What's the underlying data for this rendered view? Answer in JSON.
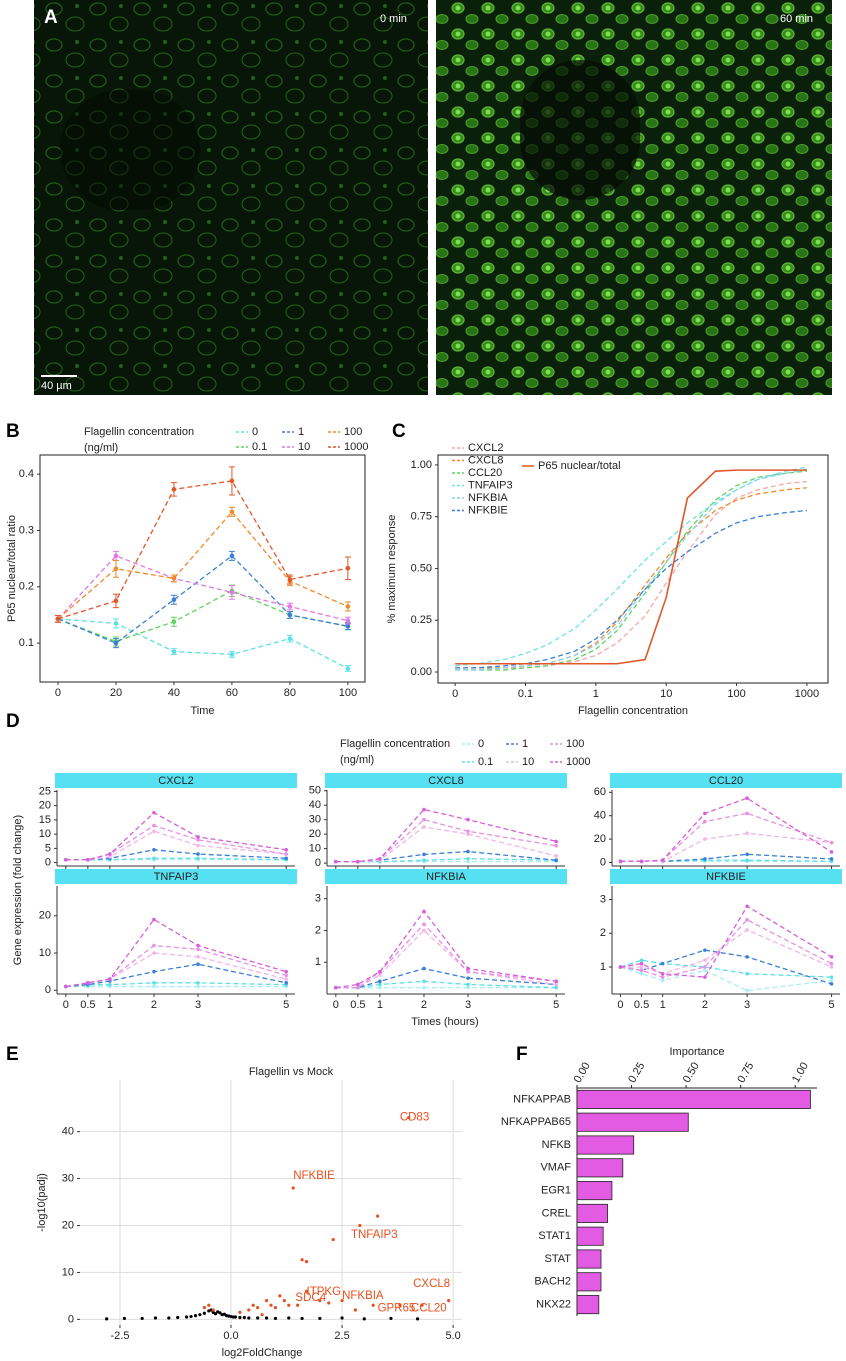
{
  "panel_labels": [
    "A",
    "B",
    "C",
    "D",
    "E",
    "F"
  ],
  "images": [
    {
      "caption": "0 min"
    },
    {
      "caption": "60 min"
    }
  ],
  "scale_bar": "40 µm",
  "chart_data": [
    {
      "type": "line",
      "xlabel": "Time",
      "ylabel": "P65 nuclear/total ratio",
      "legend_title": [
        "Flagellin concentration",
        "(ng/ml)"
      ],
      "x": [
        0,
        20,
        40,
        60,
        80,
        100
      ],
      "xlim": [
        -6.2,
        105.9
      ],
      "xticks": [
        0,
        20,
        40,
        60,
        80,
        100
      ],
      "ylim": [
        0.031,
        0.434
      ],
      "yticks": [
        0.1,
        0.2,
        0.3,
        0.4
      ],
      "line_style": "dashed",
      "series": [
        {
          "name": "0",
          "color": "#5ce0e6",
          "values": [
            0.143,
            0.135,
            0.085,
            0.08,
            0.108,
            0.055
          ],
          "errors": [
            0.006,
            0.008,
            0.005,
            0.005,
            0.006,
            0.005
          ]
        },
        {
          "name": "0.1",
          "color": "#5fd35f",
          "values": [
            0.143,
            0.103,
            0.138,
            0.193,
            0.15,
            0.13
          ],
          "errors": [
            0.006,
            0.008,
            0.008,
            0.01,
            0.006,
            0.006
          ]
        },
        {
          "name": "1",
          "color": "#3a7fd5",
          "values": [
            0.143,
            0.1,
            0.177,
            0.255,
            0.15,
            0.13
          ],
          "errors": [
            0.006,
            0.008,
            0.008,
            0.008,
            0.006,
            0.006
          ]
        },
        {
          "name": "10",
          "color": "#e377e3",
          "values": [
            0.143,
            0.255,
            0.215,
            0.19,
            0.165,
            0.14
          ],
          "errors": [
            0.006,
            0.008,
            0.006,
            0.012,
            0.006,
            0.006
          ]
        },
        {
          "name": "100",
          "color": "#f08a2a",
          "values": [
            0.143,
            0.232,
            0.215,
            0.333,
            0.21,
            0.165
          ],
          "errors": [
            0.006,
            0.015,
            0.006,
            0.008,
            0.008,
            0.008
          ]
        },
        {
          "name": "1000",
          "color": "#e2572a",
          "values": [
            0.143,
            0.175,
            0.373,
            0.388,
            0.213,
            0.233
          ],
          "errors": [
            0.006,
            0.012,
            0.012,
            0.025,
            0.008,
            0.02
          ]
        }
      ]
    },
    {
      "type": "line",
      "xlabel": "Flagellin concentration",
      "ylabel": "% maximum response",
      "xscale": "log",
      "x": [
        0.01,
        0.02,
        0.05,
        0.1,
        0.2,
        0.5,
        1,
        2,
        5,
        10,
        20,
        50,
        100,
        200,
        500,
        1000
      ],
      "xlim": [
        0.0057,
        1995
      ],
      "xticks": [
        {
          "value": 0.01,
          "label": "0"
        },
        0.1,
        1,
        10,
        100,
        1000
      ],
      "ylim": [
        -0.053,
        1.048
      ],
      "yticks": [
        {
          "value": 0,
          "label": "0.00"
        },
        0.25,
        {
          "value": 0.5,
          "label": "0.50"
        },
        0.75,
        {
          "value": 1,
          "label": "1.00"
        }
      ],
      "series": [
        {
          "name": "CXCL2",
          "color": "#f7a6a6",
          "style": "dashed",
          "values": [
            0.02,
            0.02,
            0.02,
            0.02,
            0.03,
            0.05,
            0.08,
            0.14,
            0.27,
            0.43,
            0.58,
            0.76,
            0.84,
            0.88,
            0.91,
            0.92
          ]
        },
        {
          "name": "CXCL8",
          "color": "#f08a2a",
          "style": "dashed",
          "values": [
            0.02,
            0.02,
            0.02,
            0.03,
            0.04,
            0.08,
            0.14,
            0.24,
            0.42,
            0.55,
            0.67,
            0.78,
            0.83,
            0.86,
            0.88,
            0.89
          ]
        },
        {
          "name": "CCL20",
          "color": "#5fd35f",
          "style": "dashed",
          "values": [
            0.01,
            0.01,
            0.01,
            0.02,
            0.03,
            0.06,
            0.11,
            0.2,
            0.38,
            0.53,
            0.68,
            0.83,
            0.9,
            0.94,
            0.96,
            0.97
          ]
        },
        {
          "name": "TNFAIP3",
          "color": "#6fe3e8",
          "style": "dashed",
          "values": [
            0.03,
            0.04,
            0.06,
            0.09,
            0.13,
            0.21,
            0.3,
            0.4,
            0.54,
            0.63,
            0.72,
            0.82,
            0.88,
            0.93,
            0.97,
            0.99
          ]
        },
        {
          "name": "NFKBIA",
          "color": "#8ad0f0",
          "style": "dashed",
          "values": [
            0.01,
            0.01,
            0.02,
            0.03,
            0.04,
            0.08,
            0.13,
            0.22,
            0.4,
            0.53,
            0.66,
            0.81,
            0.88,
            0.93,
            0.96,
            0.98
          ]
        },
        {
          "name": "NFKBIE",
          "color": "#3a7fd5",
          "style": "dashed",
          "values": [
            0.02,
            0.02,
            0.03,
            0.04,
            0.06,
            0.1,
            0.16,
            0.25,
            0.4,
            0.5,
            0.58,
            0.67,
            0.72,
            0.75,
            0.77,
            0.78
          ]
        },
        {
          "name": "P65 nuclear/total",
          "color": "#e2572a",
          "style": "solid",
          "values": [
            0.04,
            0.04,
            0.04,
            0.04,
            0.04,
            0.04,
            0.04,
            0.04,
            0.06,
            0.36,
            0.84,
            0.97,
            0.975,
            0.975,
            0.975,
            0.975
          ]
        }
      ]
    },
    {
      "type": "line",
      "xlabel": "Times (hours)",
      "ylabel": "Gene expression (fold change)",
      "legend_title": [
        "Flagellin concentration",
        "(ng/ml)"
      ],
      "line_style": "dashed",
      "x": [
        0,
        0.5,
        1,
        2,
        3,
        5
      ],
      "xlim": [
        -0.2,
        5.2
      ],
      "xticks": [
        0,
        0.5,
        1,
        2,
        3,
        5
      ],
      "series": [
        {
          "name": "0",
          "color": "#a8eef2"
        },
        {
          "name": "0.1",
          "color": "#5ce0e6"
        },
        {
          "name": "1",
          "color": "#3a7fd5"
        },
        {
          "name": "10",
          "color": "#f2b4ea"
        },
        {
          "name": "100",
          "color": "#e790e6"
        },
        {
          "name": "1000",
          "color": "#d660d8"
        }
      ],
      "facets": [
        {
          "title": "CXCL2",
          "ylim": [
            -1.2,
            25.5
          ],
          "yticks": [
            0,
            5,
            10,
            15,
            20,
            25
          ],
          "values": [
            [
              1,
              1,
              1,
              1,
              1,
              1
            ],
            [
              1,
              1,
              1,
              1.5,
              1.5,
              1
            ],
            [
              1,
              1,
              1.5,
              4.5,
              3,
              1.5
            ],
            [
              1,
              1,
              2,
              11,
              6,
              3
            ],
            [
              1,
              1,
              3,
              13,
              8,
              3
            ],
            [
              1,
              1,
              3,
              17.5,
              9,
              4.5
            ]
          ]
        },
        {
          "title": "CXCL8",
          "ylim": [
            -2,
            50.5
          ],
          "yticks": [
            0,
            10,
            20,
            30,
            40,
            50
          ],
          "values": [
            [
              1,
              1,
              1,
              1,
              1,
              1
            ],
            [
              1,
              1,
              1,
              2,
              3,
              2
            ],
            [
              1,
              1,
              2,
              6,
              8,
              2
            ],
            [
              1,
              1,
              2,
              25,
              20,
              5
            ],
            [
              1,
              1,
              3,
              30,
              22,
              12
            ],
            [
              1,
              1,
              3,
              37,
              30,
              15
            ]
          ]
        },
        {
          "title": "CCL20",
          "ylim": [
            -3,
            62
          ],
          "yticks": [
            0,
            20,
            40,
            60
          ],
          "values": [
            [
              1,
              1,
              1,
              1,
              1,
              1
            ],
            [
              1,
              1,
              1,
              2,
              2,
              1
            ],
            [
              1,
              1,
              1,
              3,
              7,
              3
            ],
            [
              1,
              1,
              1,
              20,
              25,
              17
            ],
            [
              1,
              1,
              2,
              35,
              42,
              17
            ],
            [
              1,
              1,
              2,
              42,
              55,
              9
            ]
          ]
        },
        {
          "title": "TNFAIP3",
          "ylim": [
            -1,
            28
          ],
          "yticks": [
            0,
            10,
            20
          ],
          "values": [
            [
              1,
              1,
              1,
              1,
              1,
              1
            ],
            [
              1,
              1.5,
              1.5,
              2,
              2,
              1.5
            ],
            [
              1,
              1.5,
              2.5,
              5,
              7,
              2
            ],
            [
              1,
              2,
              3,
              10,
              9,
              3
            ],
            [
              1,
              2,
              3,
              12,
              11,
              4
            ],
            [
              1,
              2,
              3,
              19,
              12,
              5
            ]
          ]
        },
        {
          "title": "NFKBIA",
          "ylim": [
            0,
            3.4
          ],
          "yticks": [
            1,
            2,
            3
          ],
          "values": [
            [
              0.2,
              0.2,
              0.2,
              0.2,
              0.2,
              0.2
            ],
            [
              0.2,
              0.2,
              0.3,
              0.4,
              0.3,
              0.2
            ],
            [
              0.2,
              0.2,
              0.4,
              0.8,
              0.5,
              0.3
            ],
            [
              0.2,
              0.2,
              0.6,
              2,
              0.7,
              0.3
            ],
            [
              0.2,
              0.2,
              0.7,
              2.2,
              0.7,
              0.4
            ],
            [
              0.2,
              0.3,
              0.7,
              2.6,
              0.8,
              0.4
            ]
          ]
        },
        {
          "title": "NFKBIE",
          "ylim": [
            0.2,
            3.4
          ],
          "yticks": [
            1,
            2,
            3
          ],
          "values": [
            [
              1,
              0.8,
              0.6,
              0.9,
              0.3,
              0.6
            ],
            [
              1,
              1.2,
              1.1,
              1,
              0.8,
              0.7
            ],
            [
              1,
              0.9,
              1.1,
              1.5,
              1.3,
              0.5
            ],
            [
              1,
              1,
              0.8,
              1.2,
              2.1,
              1
            ],
            [
              1,
              0.9,
              0.7,
              1,
              2.4,
              1.1
            ],
            [
              1,
              1.1,
              0.8,
              0.7,
              2.8,
              1.3
            ]
          ]
        }
      ]
    },
    {
      "type": "scatter",
      "title": "Flagellin vs Mock",
      "xlabel": "log2FoldChange",
      "ylabel": "-log10(padj)",
      "xlim": [
        -3.4,
        5.2
      ],
      "xticks": [
        -2.5,
        {
          "value": 0,
          "label": "0.0"
        },
        2.5,
        {
          "value": 5,
          "label": "5.0"
        }
      ],
      "ylim": [
        -1.2,
        51
      ],
      "yticks": [
        0,
        10,
        20,
        30,
        40
      ],
      "grid": true,
      "series": [
        {
          "color": "#000000",
          "x": [
            -2.8,
            -2.4,
            -2.0,
            -1.7,
            -1.4,
            -1.2,
            -1.0,
            -0.9,
            -0.8,
            -0.7,
            -0.6,
            -0.5,
            -0.45,
            -0.4,
            -0.35,
            -0.3,
            -0.25,
            -0.2,
            -0.15,
            -0.1,
            -0.05,
            0,
            0.05,
            0.1,
            0.2,
            0.3,
            0.4,
            0.6,
            0.8,
            1.0,
            1.3,
            1.6,
            2.0,
            2.5,
            3.0,
            3.6,
            4.2
          ],
          "values": [
            0.1,
            0.2,
            0.2,
            0.3,
            0.3,
            0.4,
            0.5,
            0.6,
            0.8,
            1.0,
            1.3,
            1.8,
            2.0,
            1.5,
            1.2,
            1.6,
            1.4,
            1.0,
            1.1,
            0.8,
            0.7,
            0.6,
            0.5,
            0.5,
            0.4,
            0.4,
            0.3,
            0.3,
            0.3,
            0.2,
            0.3,
            0.2,
            0.2,
            0.3,
            0.1,
            0.2,
            0.1
          ]
        },
        {
          "color": "#e8501e",
          "x": [
            -0.6,
            -0.5,
            -0.4,
            0.2,
            0.4,
            0.5,
            0.6,
            0.7,
            0.8,
            0.9,
            1.0,
            1.1,
            1.2,
            1.3,
            1.5,
            1.7,
            2.0,
            2.2,
            2.5,
            2.8,
            3.2,
            3.8,
            4.3,
            4.9,
            1.4,
            3.3,
            2.9,
            2.3,
            1.6,
            1.7,
            4.0
          ],
          "values": [
            2.5,
            3,
            2,
            1.5,
            2,
            3,
            2.5,
            1,
            4,
            3,
            2.5,
            5,
            4,
            3,
            3,
            6,
            4,
            3.5,
            4,
            2,
            3,
            3,
            3,
            4,
            28,
            22,
            20,
            17,
            12.7,
            12.3,
            43
          ]
        }
      ],
      "annotations": [
        {
          "text": "CD83",
          "x": 3.8,
          "y": 43
        },
        {
          "text": "NFKBIE",
          "x": 1.4,
          "y": 30.5
        },
        {
          "text": "TNFAIP3",
          "x": 2.7,
          "y": 18
        },
        {
          "text": "CXCL8",
          "x": 4.1,
          "y": 7.5
        },
        {
          "text": "ITPKG",
          "x": 1.7,
          "y": 5.8
        },
        {
          "text": "SDC4",
          "x": 1.45,
          "y": 4.6
        },
        {
          "text": "NFKBIA",
          "x": 2.5,
          "y": 5
        },
        {
          "text": "GPR65",
          "x": 3.3,
          "y": 2.3
        },
        {
          "text": "CCL20",
          "x": 4.05,
          "y": 2.3
        }
      ]
    },
    {
      "type": "hbar",
      "title": "Importance",
      "color": "#e35ae3",
      "categories": [
        "NFKAPPAB",
        "NFKAPPAB65",
        "NFKB",
        "VMAF",
        "EGR1",
        "CREL",
        "STAT1",
        "STAT",
        "BACH2",
        "NKX22"
      ],
      "values": [
        1.07,
        0.51,
        0.26,
        0.21,
        0.16,
        0.14,
        0.12,
        0.11,
        0.11,
        0.1
      ],
      "xlim": [
        0,
        1.1
      ],
      "xticks": [
        {
          "value": 0,
          "label": "0.00"
        },
        0.25,
        {
          "value": 0.5,
          "label": "0.50"
        },
        0.75,
        {
          "value": 1,
          "label": "1.00"
        }
      ]
    }
  ]
}
